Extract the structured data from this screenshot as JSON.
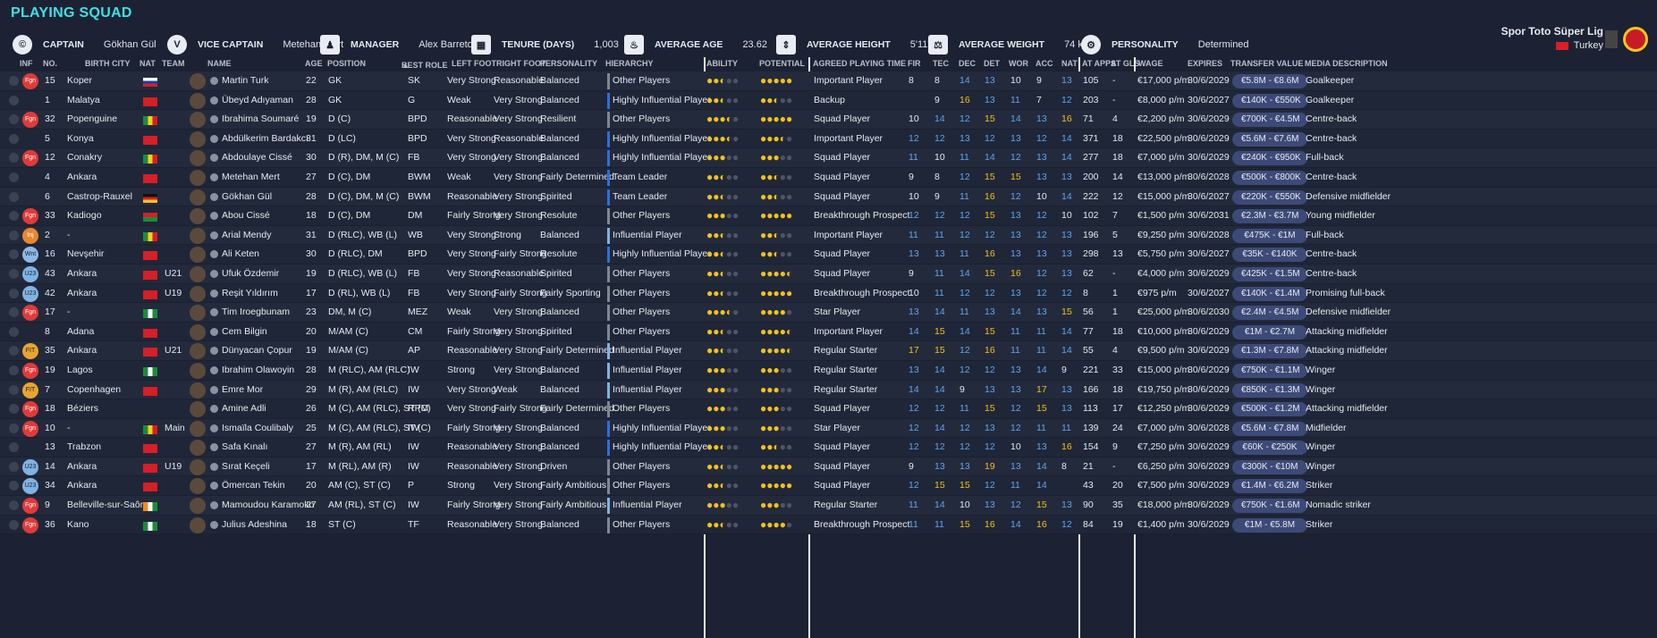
{
  "title": "PLAYING SQUAD",
  "header": {
    "captain_label": "CAPTAIN",
    "captain": "Gökhan Gül",
    "vice_label": "VICE CAPTAIN",
    "vice": "Metehan Mert",
    "manager_label": "MANAGER",
    "manager": "Alex Barreto",
    "tenure_label": "TENURE (DAYS)",
    "tenure": "1,003",
    "age_label": "AVERAGE AGE",
    "age": "23.62",
    "height_label": "AVERAGE HEIGHT",
    "height": "5'11\"",
    "weight_label": "AVERAGE WEIGHT",
    "weight": "74 kg",
    "personality_label": "PERSONALITY",
    "personality": "Determined",
    "league": "Spor Toto Süper Lig",
    "country": "Turkey"
  },
  "columns": {
    "inf": "INF",
    "no": "NO.",
    "city": "BIRTH CITY",
    "nat": "NAT",
    "team": "TEAM",
    "name": "NAME",
    "age": "AGE",
    "position": "POSITION",
    "role": "BEST ROLE",
    "lf": "LEFT FOOT",
    "rf": "RIGHT FOOT",
    "pers": "PERSONALITY",
    "hier": "HIERARCHY",
    "ability": "ABILITY",
    "potential": "POTENTIAL",
    "apt": "AGREED PLAYING TIME",
    "fir": "FIR",
    "tec": "TEC",
    "dec": "DEC",
    "det": "DET",
    "wor": "WOR",
    "acc": "ACC",
    "nat2": "NAT",
    "apps": "AT APPS",
    "gls": "AT GLS",
    "wage": "WAGE",
    "expires": "EXPIRES",
    "tv": "TRANSFER VALUE",
    "media": "MEDIA DESCRIPTION"
  },
  "colors": {
    "gold": "#f2c21b",
    "blue_attr": "#5ea6f0",
    "accent": "#3fe0e6"
  },
  "players": [
    {
      "badge": "Fgn",
      "bc": "fgn",
      "no": "15",
      "city": "Koper",
      "flag": "ru",
      "team": "",
      "name": "Martin Turk",
      "age": "22",
      "pos": "GK",
      "role": "SK",
      "lf": "Very Strong",
      "rf": "Reasonable",
      "pers": "Balanced",
      "hier": "Other Players",
      "hb": "grey",
      "ab": "●●◐○○",
      "pot": "●●●●●",
      "apt": "Important Player",
      "fir": "8",
      "tec": "8",
      "dec": "14",
      "det": "13",
      "wor": "10",
      "acc": "9",
      "nat": "13",
      "apps": "105",
      "gls": "-",
      "wage": "€17,000 p/m",
      "exp": "30/6/2029",
      "tv": "€5.8M - €8.6M",
      "media": "Goalkeeper"
    },
    {
      "badge": "",
      "bc": "",
      "no": "1",
      "city": "Malatya",
      "flag": "tr",
      "team": "",
      "name": "Übeyd Adıyaman",
      "age": "28",
      "pos": "GK",
      "role": "G",
      "lf": "Weak",
      "rf": "Very Strong",
      "pers": "Balanced",
      "hier": "Highly Influential Player",
      "hb": "blue",
      "ab": "●●◐○○",
      "pot": "●●◐○○",
      "apt": "Backup",
      "fir": "",
      "tec": "9",
      "dec": "16",
      "det": "13",
      "wor": "11",
      "acc": "7",
      "nat": "12",
      "apps": "203",
      "gls": "-",
      "wage": "€8,000 p/m",
      "exp": "30/6/2027",
      "tv": "€140K - €550K",
      "media": "Goalkeeper"
    },
    {
      "badge": "Fgn",
      "bc": "fgn",
      "no": "32",
      "city": "Popenguine",
      "flag": "sn",
      "team": "",
      "name": "Ibrahima Soumaré",
      "age": "19",
      "pos": "D (C)",
      "role": "BPD",
      "lf": "Reasonable",
      "rf": "Very Strong",
      "pers": "Resilient",
      "hier": "Other Players",
      "hb": "grey",
      "ab": "●●●◐○",
      "pot": "●●●●●",
      "apt": "Squad Player",
      "fir": "10",
      "tec": "14",
      "dec": "12",
      "det": "15",
      "wor": "14",
      "acc": "13",
      "nat": "16",
      "apps": "71",
      "gls": "4",
      "wage": "€2,200 p/m",
      "exp": "30/6/2029",
      "tv": "€700K - €4.5M",
      "media": "Centre-back"
    },
    {
      "badge": "",
      "bc": "",
      "no": "5",
      "city": "Konya",
      "flag": "tr",
      "team": "",
      "name": "Abdülkerim Bardakcı",
      "age": "31",
      "pos": "D (LC)",
      "role": "BPD",
      "lf": "Very Strong",
      "rf": "Reasonable",
      "pers": "Balanced",
      "hier": "Highly Influential Player",
      "hb": "blue",
      "ab": "●●●◐○",
      "pot": "●●●◐○",
      "apt": "Important Player",
      "fir": "12",
      "tec": "12",
      "dec": "13",
      "det": "12",
      "wor": "13",
      "acc": "12",
      "nat": "14",
      "apps": "371",
      "gls": "18",
      "wage": "€22,500 p/m",
      "exp": "30/6/2029",
      "tv": "€5.6M - €7.6M",
      "media": "Centre-back"
    },
    {
      "badge": "Fgn",
      "bc": "fgn",
      "no": "12",
      "city": "Conakry",
      "flag": "ml",
      "team": "",
      "name": "Abdoulaye Cissé",
      "age": "30",
      "pos": "D (R), DM, M (C)",
      "role": "FB",
      "lf": "Very Strong",
      "rf": "Very Strong",
      "pers": "Balanced",
      "hier": "Highly Influential Player",
      "hb": "blue",
      "ab": "●●●○○",
      "pot": "●●●○○",
      "apt": "Squad Player",
      "fir": "11",
      "tec": "10",
      "dec": "11",
      "det": "14",
      "wor": "12",
      "acc": "13",
      "nat": "14",
      "apps": "277",
      "gls": "18",
      "wage": "€7,000 p/m",
      "exp": "30/6/2029",
      "tv": "€240K - €950K",
      "media": "Full-back"
    },
    {
      "badge": "",
      "bc": "",
      "no": "4",
      "city": "Ankara",
      "flag": "tr",
      "team": "",
      "name": "Metehan Mert",
      "age": "27",
      "pos": "D (C), DM",
      "role": "BWM",
      "lf": "Weak",
      "rf": "Very Strong",
      "pers": "Fairly Determined",
      "hier": "Team Leader",
      "hb": "blue",
      "ab": "●●◐○○",
      "pot": "●●◐○○",
      "apt": "Squad Player",
      "fir": "9",
      "tec": "8",
      "dec": "12",
      "det": "15",
      "wor": "15",
      "acc": "13",
      "nat": "13",
      "apps": "200",
      "gls": "14",
      "wage": "€13,000 p/m",
      "exp": "30/6/2028",
      "tv": "€500K - €800K",
      "media": "Centre-back"
    },
    {
      "badge": "",
      "bc": "",
      "no": "6",
      "city": "Castrop-Rauxel",
      "flag": "de",
      "team": "",
      "name": "Gökhan Gül",
      "age": "28",
      "pos": "D (C), DM, M (C)",
      "role": "BWM",
      "lf": "Reasonable",
      "rf": "Very Strong",
      "pers": "Spirited",
      "hier": "Team Leader",
      "hb": "blue",
      "ab": "●●◐○○",
      "pot": "●●◐○○",
      "apt": "Squad Player",
      "fir": "10",
      "tec": "9",
      "dec": "11",
      "det": "16",
      "wor": "12",
      "acc": "10",
      "nat": "14",
      "apps": "222",
      "gls": "12",
      "wage": "€15,000 p/m",
      "exp": "30/6/2027",
      "tv": "€220K - €550K",
      "media": "Defensive midfielder"
    },
    {
      "badge": "Fgn",
      "bc": "fgn",
      "no": "33",
      "city": "Kadiogo",
      "flag": "bf",
      "team": "",
      "name": "Abou Cissé",
      "age": "18",
      "pos": "D (C), DM",
      "role": "DM",
      "lf": "Fairly Strong",
      "rf": "Very Strong",
      "pers": "Resolute",
      "hier": "Other Players",
      "hb": "grey",
      "ab": "●●●○○",
      "pot": "●●●●●",
      "apt": "Breakthrough Prospect",
      "fir": "12",
      "tec": "12",
      "dec": "12",
      "det": "15",
      "wor": "13",
      "acc": "12",
      "nat": "10",
      "apps": "102",
      "gls": "7",
      "wage": "€1,500 p/m",
      "exp": "30/6/2031",
      "tv": "€2.3M - €3.7M",
      "media": "Young midfielder"
    },
    {
      "badge": "Inj",
      "bc": "inj",
      "no": "2",
      "city": "-",
      "flag": "sn",
      "team": "",
      "name": "Arial Mendy",
      "age": "31",
      "pos": "D (RLC), WB (L)",
      "role": "WB",
      "lf": "Very Strong",
      "rf": "Strong",
      "pers": "Balanced",
      "hier": "Influential Player",
      "hb": "lblue",
      "ab": "●●◐○○",
      "pot": "●●◐○○",
      "apt": "Important Player",
      "fir": "11",
      "tec": "11",
      "dec": "12",
      "det": "12",
      "wor": "13",
      "acc": "12",
      "nat": "13",
      "apps": "196",
      "gls": "5",
      "wage": "€9,250 p/m",
      "exp": "30/6/2028",
      "tv": "€475K - €1M",
      "media": "Full-back"
    },
    {
      "badge": "Wnt",
      "bc": "wnt",
      "no": "16",
      "city": "Nevşehir",
      "flag": "tr",
      "team": "",
      "name": "Ali Keten",
      "age": "30",
      "pos": "D (RLC), DM",
      "role": "BPD",
      "lf": "Very Strong",
      "rf": "Fairly Strong",
      "pers": "Resolute",
      "hier": "Highly Influential Player",
      "hb": "blue",
      "ab": "●●◐○○",
      "pot": "●●◐○○",
      "apt": "Squad Player",
      "fir": "13",
      "tec": "13",
      "dec": "11",
      "det": "16",
      "wor": "13",
      "acc": "13",
      "nat": "13",
      "apps": "298",
      "gls": "13",
      "wage": "€5,750 p/m",
      "exp": "30/6/2027",
      "tv": "€35K - €140K",
      "media": "Centre-back"
    },
    {
      "badge": "U23",
      "bc": "u23",
      "no": "43",
      "city": "Ankara",
      "flag": "tr",
      "team": "U21",
      "name": "Ufuk Özdemir",
      "age": "19",
      "pos": "D (RLC), WB (L)",
      "role": "FB",
      "lf": "Very Strong",
      "rf": "Reasonable",
      "pers": "Spirited",
      "hier": "Other Players",
      "hb": "grey",
      "ab": "●●◐○○",
      "pot": "●●●●◐",
      "apt": "Squad Player",
      "fir": "9",
      "tec": "11",
      "dec": "14",
      "det": "15",
      "wor": "16",
      "acc": "12",
      "nat": "13",
      "apps": "62",
      "gls": "-",
      "wage": "€4,000 p/m",
      "exp": "30/6/2029",
      "tv": "€425K - €1.5M",
      "media": "Centre-back"
    },
    {
      "badge": "U23",
      "bc": "u23",
      "no": "42",
      "city": "Ankara",
      "flag": "tr",
      "team": "U19",
      "name": "Reşit Yıldırım",
      "age": "17",
      "pos": "D (RL), WB (L)",
      "role": "FB",
      "lf": "Very Strong",
      "rf": "Fairly Strong",
      "pers": "Fairly Sporting",
      "hier": "Other Players",
      "hb": "grey",
      "ab": "●●◐○○",
      "pot": "●●●●●",
      "apt": "Breakthrough Prospect",
      "fir": "10",
      "tec": "11",
      "dec": "12",
      "det": "12",
      "wor": "13",
      "acc": "12",
      "nat": "12",
      "apps": "8",
      "gls": "1",
      "wage": "€975 p/m",
      "exp": "30/6/2027",
      "tv": "€140K - €1.4M",
      "media": "Promising full-back"
    },
    {
      "badge": "Fgn",
      "bc": "fgn",
      "no": "17",
      "city": "-",
      "flag": "ng",
      "team": "",
      "name": "Tim Iroegbunam",
      "age": "23",
      "pos": "DM, M (C)",
      "role": "MEZ",
      "lf": "Weak",
      "rf": "Very Strong",
      "pers": "Balanced",
      "hier": "Other Players",
      "hb": "grey",
      "ab": "●●●◐○",
      "pot": "●●●●○",
      "apt": "Star Player",
      "fir": "13",
      "tec": "14",
      "dec": "11",
      "det": "13",
      "wor": "14",
      "acc": "13",
      "nat": "15",
      "apps": "56",
      "gls": "1",
      "wage": "€25,000 p/m",
      "exp": "30/6/2030",
      "tv": "€2.4M - €4.5M",
      "media": "Defensive midfielder"
    },
    {
      "badge": "",
      "bc": "",
      "no": "8",
      "city": "Adana",
      "flag": "tr",
      "team": "",
      "name": "Cem Bilgin",
      "age": "20",
      "pos": "M/AM (C)",
      "role": "CM",
      "lf": "Fairly Strong",
      "rf": "Very Strong",
      "pers": "Spirited",
      "hier": "Other Players",
      "hb": "grey",
      "ab": "●●◐○○",
      "pot": "●●●●◐",
      "apt": "Important Player",
      "fir": "14",
      "tec": "15",
      "dec": "14",
      "det": "15",
      "wor": "11",
      "acc": "11",
      "nat": "14",
      "apps": "77",
      "gls": "18",
      "wage": "€10,000 p/m",
      "exp": "30/6/2029",
      "tv": "€1M - €2.7M",
      "media": "Attacking midfielder"
    },
    {
      "badge": "FIT",
      "bc": "fit",
      "no": "35",
      "city": "Ankara",
      "flag": "tr",
      "team": "U21",
      "name": "Dünyacan Çopur",
      "age": "19",
      "pos": "M/AM (C)",
      "role": "AP",
      "lf": "Reasonable",
      "rf": "Very Strong",
      "pers": "Fairly Determined",
      "hier": "Influential Player",
      "hb": "lblue",
      "ab": "●●◐○○",
      "pot": "●●●●◐",
      "apt": "Regular Starter",
      "fir": "17",
      "tec": "15",
      "dec": "12",
      "det": "16",
      "wor": "11",
      "acc": "11",
      "nat": "14",
      "apps": "55",
      "gls": "4",
      "wage": "€9,500 p/m",
      "exp": "30/6/2029",
      "tv": "€1.3M - €7.8M",
      "media": "Attacking midfielder"
    },
    {
      "badge": "Fgn",
      "bc": "fgn",
      "no": "19",
      "city": "Lagos",
      "flag": "ng",
      "team": "",
      "name": "Ibrahim Olawoyin",
      "age": "28",
      "pos": "M (RLC), AM (RLC)",
      "role": "IW",
      "lf": "Strong",
      "rf": "Very Strong",
      "pers": "Balanced",
      "hier": "Influential Player",
      "hb": "lblue",
      "ab": "●●●○○",
      "pot": "●●●○○",
      "apt": "Regular Starter",
      "fir": "13",
      "tec": "14",
      "dec": "12",
      "det": "12",
      "wor": "13",
      "acc": "14",
      "nat": "9",
      "apps": "221",
      "gls": "33",
      "wage": "€15,000 p/m",
      "exp": "30/6/2029",
      "tv": "€750K - €1.1M",
      "media": "Winger"
    },
    {
      "badge": "FIT",
      "bc": "fit",
      "no": "7",
      "city": "Copenhagen",
      "flag": "tr",
      "team": "",
      "name": "Emre Mor",
      "age": "29",
      "pos": "M (R), AM (RLC)",
      "role": "IW",
      "lf": "Very Strong",
      "rf": "Weak",
      "pers": "Balanced",
      "hier": "Influential Player",
      "hb": "lblue",
      "ab": "●●●○○",
      "pot": "●●●○○",
      "apt": "Regular Starter",
      "fir": "14",
      "tec": "14",
      "dec": "9",
      "det": "13",
      "wor": "13",
      "acc": "17",
      "nat": "13",
      "apps": "166",
      "gls": "18",
      "wage": "€19,750 p/m",
      "exp": "30/6/2029",
      "tv": "€850K - €1.3M",
      "media": "Winger"
    },
    {
      "badge": "Fgn",
      "bc": "fgn",
      "no": "18",
      "city": "Béziers",
      "flag": "dz",
      "team": "",
      "name": "Amine Adli",
      "age": "26",
      "pos": "M (C), AM (RLC), ST (C)",
      "role": "RPM",
      "lf": "Very Strong",
      "rf": "Fairly Strong",
      "pers": "Fairly Determined",
      "hier": "Other Players",
      "hb": "grey",
      "ab": "●●●○○",
      "pot": "●●●○○",
      "apt": "Squad Player",
      "fir": "12",
      "tec": "12",
      "dec": "11",
      "det": "15",
      "wor": "12",
      "acc": "15",
      "nat": "13",
      "apps": "113",
      "gls": "17",
      "wage": "€12,250 p/m",
      "exp": "30/6/2029",
      "tv": "€500K - €1.2M",
      "media": "Attacking midfielder"
    },
    {
      "badge": "Fgn",
      "bc": "fgn",
      "no": "10",
      "city": "-",
      "flag": "sn",
      "team": "Main",
      "name": "Ismaïla Coulibaly",
      "age": "25",
      "pos": "M (C), AM (RLC), ST (C)",
      "role": "IW",
      "lf": "Fairly Strong",
      "rf": "Very Strong",
      "pers": "Balanced",
      "hier": "Highly Influential Player",
      "hb": "blue",
      "ab": "●●●○○",
      "pot": "●●●○○",
      "apt": "Star Player",
      "fir": "12",
      "tec": "14",
      "dec": "12",
      "det": "13",
      "wor": "12",
      "acc": "11",
      "nat": "11",
      "apps": "139",
      "gls": "24",
      "wage": "€7,000 p/m",
      "exp": "30/6/2028",
      "tv": "€5.6M - €7.8M",
      "media": "Midfielder"
    },
    {
      "badge": "",
      "bc": "",
      "no": "13",
      "city": "Trabzon",
      "flag": "tr",
      "team": "",
      "name": "Safa Kınalı",
      "age": "27",
      "pos": "M (R), AM (RL)",
      "role": "IW",
      "lf": "Reasonable",
      "rf": "Very Strong",
      "pers": "Balanced",
      "hier": "Highly Influential Player",
      "hb": "blue",
      "ab": "●●◐○○",
      "pot": "●●◐○○",
      "apt": "Squad Player",
      "fir": "12",
      "tec": "12",
      "dec": "12",
      "det": "12",
      "wor": "10",
      "acc": "13",
      "nat": "16",
      "apps": "154",
      "gls": "9",
      "wage": "€7,250 p/m",
      "exp": "30/6/2029",
      "tv": "€60K - €250K",
      "media": "Winger"
    },
    {
      "badge": "U23",
      "bc": "u23",
      "no": "14",
      "city": "Ankara",
      "flag": "tr",
      "team": "U19",
      "name": "Sırat Keçeli",
      "age": "17",
      "pos": "M (RL), AM (R)",
      "role": "IW",
      "lf": "Reasonable",
      "rf": "Very Strong",
      "pers": "Driven",
      "hier": "Other Players",
      "hb": "grey",
      "ab": "●●◐○○",
      "pot": "●●●●●",
      "apt": "Squad Player",
      "fir": "9",
      "tec": "13",
      "dec": "13",
      "det": "19",
      "wor": "13",
      "acc": "14",
      "nat": "8",
      "apps": "21",
      "gls": "-",
      "wage": "€6,250 p/m",
      "exp": "30/6/2029",
      "tv": "€300K - €10M",
      "media": "Winger"
    },
    {
      "badge": "U23",
      "bc": "u23",
      "no": "34",
      "city": "Ankara",
      "flag": "tr",
      "team": "",
      "name": "Ömercan Tekin",
      "age": "20",
      "pos": "AM (C), ST (C)",
      "role": "P",
      "lf": "Strong",
      "rf": "Very Strong",
      "pers": "Fairly Ambitious",
      "hier": "Other Players",
      "hb": "grey",
      "ab": "●●◐○○",
      "pot": "●●●●●",
      "apt": "Squad Player",
      "fir": "12",
      "tec": "15",
      "dec": "15",
      "det": "12",
      "wor": "11",
      "acc": "14",
      "nat": "",
      "apps": "43",
      "gls": "20",
      "wage": "€7,500 p/m",
      "exp": "30/6/2029",
      "tv": "€1.4M - €6.2M",
      "media": "Striker"
    },
    {
      "badge": "Fgn",
      "bc": "fgn",
      "no": "9",
      "city": "Belleville-sur-Saône",
      "flag": "ci",
      "team": "",
      "name": "Mamoudou Karamoko",
      "age": "27",
      "pos": "AM (RL), ST (C)",
      "role": "IW",
      "lf": "Fairly Strong",
      "rf": "Very Strong",
      "pers": "Fairly Ambitious",
      "hier": "Influential Player",
      "hb": "lblue",
      "ab": "●●●○○",
      "pot": "●●●○○",
      "apt": "Regular Starter",
      "fir": "11",
      "tec": "14",
      "dec": "10",
      "det": "13",
      "wor": "12",
      "acc": "15",
      "nat": "13",
      "apps": "90",
      "gls": "35",
      "wage": "€18,000 p/m",
      "exp": "30/6/2029",
      "tv": "€750K - €1.6M",
      "media": "Nomadic striker"
    },
    {
      "badge": "Fgn",
      "bc": "fgn",
      "no": "36",
      "city": "Kano",
      "flag": "ng",
      "team": "",
      "name": "Julius Adeshina",
      "age": "18",
      "pos": "ST (C)",
      "role": "TF",
      "lf": "Reasonable",
      "rf": "Very Strong",
      "pers": "Balanced",
      "hier": "Other Players",
      "hb": "grey",
      "ab": "●●◐○○",
      "pot": "●●●●○",
      "apt": "Breakthrough Prospect",
      "fir": "11",
      "tec": "11",
      "dec": "15",
      "det": "16",
      "wor": "14",
      "acc": "16",
      "nat": "12",
      "apps": "84",
      "gls": "19",
      "wage": "€1,400 p/m",
      "exp": "30/6/2029",
      "tv": "€1M - €5.8M",
      "media": "Striker"
    }
  ]
}
